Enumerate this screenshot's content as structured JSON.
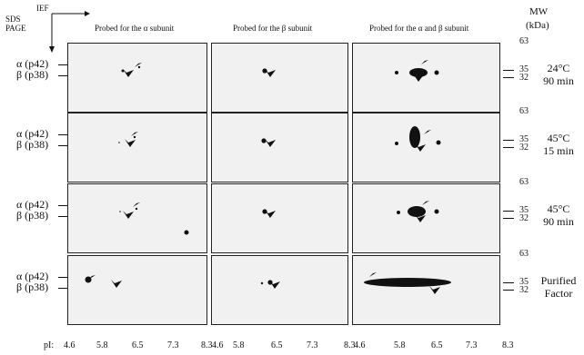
{
  "header": {
    "ief": "IEF",
    "sds_line1": "SDS",
    "sds_line2": "PAGE",
    "mw": "MW",
    "kda": "(kDa)"
  },
  "columns": [
    "Probed for the α subunit",
    "Probed for the β subunit",
    "Probed for the α and β subunit"
  ],
  "row_labels": {
    "alpha": "α (p42)",
    "beta": "β (p38)"
  },
  "mw_markers": {
    "top": "63",
    "mid1": "35",
    "mid2": "32"
  },
  "conditions": [
    {
      "line1": "24°C",
      "line2": "90 min"
    },
    {
      "line1": "45°C",
      "line2": "15 min"
    },
    {
      "line1": "45°C",
      "line2": "90 min"
    },
    {
      "line1": "Purified",
      "line2": "Factor"
    }
  ],
  "pi_axis": {
    "label": "pI:",
    "ticks": [
      "4.6",
      "5.8",
      "6.5",
      "7.3",
      "8.3"
    ]
  }
}
